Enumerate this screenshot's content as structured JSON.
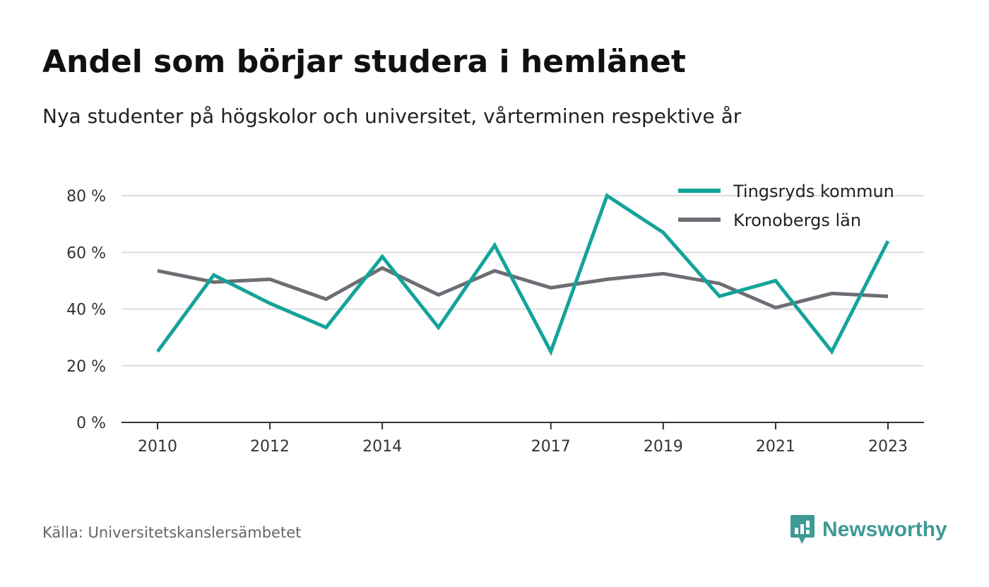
{
  "title": "Andel som börjar studera i hemlänet",
  "subtitle": "Nya studenter på högskolor och universitet, vårterminen respektive år",
  "source": "Källa: Universitetskanslersämbetet",
  "brand": "Newsworthy",
  "colors": {
    "series_1": "#14a39a",
    "series_2": "#6e6d74",
    "grid": "#dddddd",
    "axis": "#333333",
    "brand": "#3e9a94"
  },
  "chart_data": {
    "type": "line",
    "x": [
      2010,
      2011,
      2012,
      2013,
      2014,
      2015,
      2016,
      2017,
      2018,
      2019,
      2020,
      2021,
      2022,
      2023
    ],
    "x_tick_labels": [
      "2010",
      "2012",
      "2014",
      "2017",
      "2019",
      "2021",
      "2023"
    ],
    "x_tick_values": [
      2010,
      2012,
      2014,
      2017,
      2019,
      2021,
      2023
    ],
    "y_ticks": [
      0,
      20,
      40,
      60,
      80
    ],
    "y_tick_labels": [
      "0 %",
      "20 %",
      "40 %",
      "60 %",
      "80 %"
    ],
    "ylim": [
      0,
      80
    ],
    "xlim": [
      2010,
      2023
    ],
    "grid": true,
    "legend_position": "top-right",
    "series": [
      {
        "name": "Tingsryds kommun",
        "values": [
          25,
          52,
          42,
          33.5,
          58.5,
          33.5,
          62.5,
          25,
          80,
          67,
          44.5,
          50,
          25,
          64
        ]
      },
      {
        "name": "Kronobergs län",
        "values": [
          53.5,
          49.5,
          50.5,
          43.5,
          54.5,
          45,
          53.5,
          47.5,
          50.5,
          52.5,
          49,
          40.5,
          45.5,
          44.5
        ]
      }
    ]
  }
}
